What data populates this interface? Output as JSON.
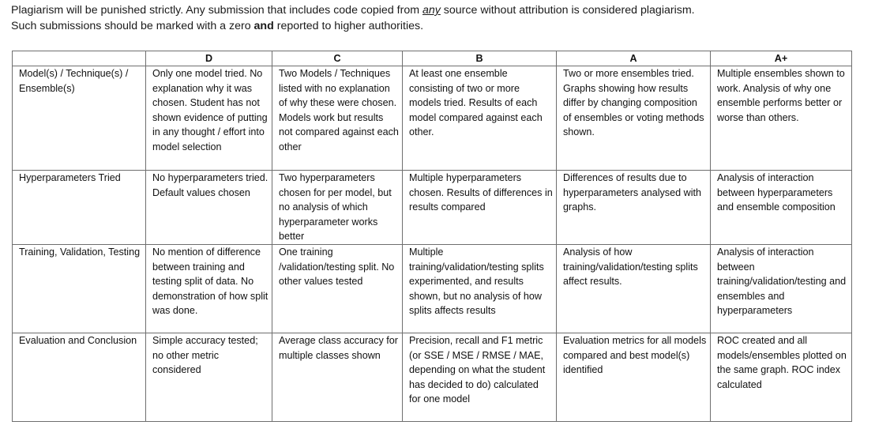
{
  "notice": {
    "line1_before": "Plagiarism will be punished strictly. Any submission that includes code copied from ",
    "line1_emph": "any",
    "line1_after": " source without attribution is considered plagiarism.",
    "line2_before": "Such submissions should be marked with a zero ",
    "line2_bold": "and",
    "line2_after": " reported to higher authorities."
  },
  "table": {
    "headers": [
      "",
      "D",
      "C",
      "B",
      "A",
      "A+"
    ],
    "rows": [
      {
        "criterion": "Model(s) / Technique(s) / Ensemble(s)",
        "cells": [
          "Only one model tried. No explanation why it was chosen. Student has not shown evidence of putting in any thought / effort into model selection",
          "Two Models / Techniques listed with no explanation of why these were chosen. Models work but results not compared against each other",
          "At least one ensemble consisting of two or more models tried. Results of each model compared against each other.",
          "Two or more ensembles tried. Graphs showing how results differ by changing composition of ensembles or voting methods shown.",
          "Multiple ensembles shown to work. Analysis of why one ensemble performs better or worse than others."
        ]
      },
      {
        "criterion": "Hyperparameters Tried",
        "cells": [
          "No hyperparameters tried. Default values chosen",
          "Two hyperparameters chosen for per model, but no analysis of which hyperparameter works better",
          "Multiple hyperparameters chosen. Results of differences in results compared",
          "Differences of results due to hyperparameters analysed with graphs.",
          "Analysis of interaction between hyperparameters and ensemble composition"
        ]
      },
      {
        "criterion": "Training, Validation, Testing",
        "cells": [
          "No mention of difference between training and testing split of data. No demonstration of how split was done.",
          "One training /validation/testing split. No other values tested",
          "Multiple training/validation/testing splits experimented, and results shown, but no analysis of how splits affects results",
          "Analysis of how training/validation/testing splits affect results.",
          "Analysis of interaction between training/validation/testing and ensembles and hyperparameters"
        ]
      },
      {
        "criterion": "Evaluation and Conclusion",
        "cells": [
          "Simple accuracy tested; no other metric considered",
          "Average class accuracy for multiple classes shown",
          "Precision, recall and F1 metric (or SSE / MSE / RMSE / MAE, depending on what the student has decided to do) calculated for one model",
          "Evaluation metrics for all models compared and best model(s) identified",
          "ROC created and all models/ensembles plotted on the same graph. ROC index calculated"
        ]
      }
    ]
  }
}
